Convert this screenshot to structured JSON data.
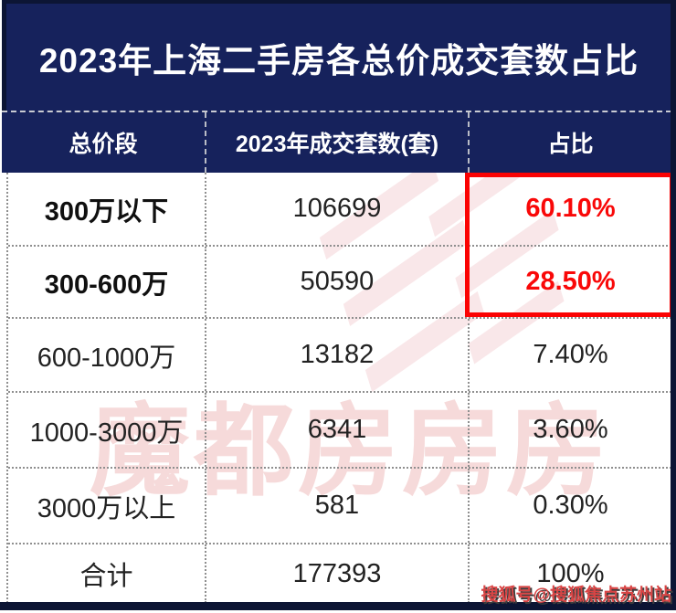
{
  "page": {
    "title": "2023年上海二手房各总价成交套数占比",
    "source_credit": "搜狐号@搜狐焦点苏州站",
    "watermark_text": "魔都房房房"
  },
  "table": {
    "headers": {
      "price_range": "总价段",
      "deals": "2023年成交套数(套)",
      "share": "占比"
    },
    "rows": [
      {
        "range": "300万以下",
        "count": "106699",
        "share": "60.10%"
      },
      {
        "range": "300-600万",
        "count": "50590",
        "share": "28.50%"
      },
      {
        "range": "600-1000万",
        "count": "13182",
        "share": "7.40%"
      },
      {
        "range": "1000-3000万",
        "count": "6341",
        "share": "3.60%"
      },
      {
        "range": "3000万以上",
        "count": "581",
        "share": "0.30%"
      },
      {
        "range": "合计",
        "count": "177393",
        "share": "100%"
      }
    ]
  },
  "colors": {
    "navy": "#16225c",
    "dark_border": "#0c1534",
    "highlight_box_red": "#fb0303",
    "highlight_text_red": "#f90808",
    "credit_red": "#d94444",
    "watermark_pink": "#f6dada"
  },
  "chart_data": {
    "type": "table",
    "title": "2023年上海二手房各总价成交套数占比",
    "columns": [
      "总价段",
      "2023年成交套数(套)",
      "占比"
    ],
    "rows": [
      [
        "300万以下",
        106699,
        "60.10%"
      ],
      [
        "300-600万",
        50590,
        "28.50%"
      ],
      [
        "600-1000万",
        13182,
        "7.40%"
      ],
      [
        "1000-3000万",
        6341,
        "3.60%"
      ],
      [
        "3000万以上",
        581,
        "0.30%"
      ],
      [
        "合计",
        177393,
        "100%"
      ]
    ],
    "share_pct": [
      60.1,
      28.5,
      7.4,
      3.6,
      0.3,
      100
    ],
    "highlighted_rows": [
      "300万以下",
      "300-600万"
    ],
    "total_units": 177393
  }
}
